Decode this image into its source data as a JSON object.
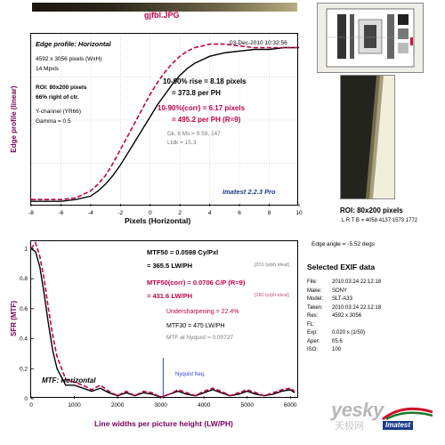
{
  "header": {
    "filename": "gjfbl.JPG"
  },
  "edge_panel": {
    "title": "Edge profile: Horizontal",
    "date": "03-Dec-2010 10:32:56",
    "dims": "4592 x 3056 pixels (WxH)",
    "mpxls": "14 Mpxls",
    "roi": "ROI: 80x200 pixels",
    "position": "66% right of ctr.",
    "channel": "Y-channel  (YR66)",
    "gamma": "Gamma = 0.5",
    "rise": "10-90% rise = 8.18 pixels",
    "rise_ph": "= 373.8 per PH",
    "rise_corr": "10-90%(corr) = 6.17 pixels",
    "rise_corr_ph": "= 495.2 per PH  (R=9)",
    "dk_lt": "Dk, lt Ms = 9.59, 147",
    "ltdk": "Ltdk = 15.3",
    "brand": "Imatest 2.2.3 Pro"
  },
  "mtf_panel": {
    "mtf50": "MTF50 = 0.0598 Cy/Pxl",
    "mtf50_lwph": "= 365.5 LW/PH",
    "mtf50_ideal": "[201 lp/ph ideal]",
    "mtf50_corr": "MTF50(corr) = 0.0706 C/P  (R=9)",
    "mtf50_corr_lwph": "= 431.6 LW/PH",
    "mtf50_corr_ideal": "[280 lp/ph ideal]",
    "undersharpening": "Undersharpening = 22.4%",
    "mtf30": "MTF30 = 475 LW/PH",
    "nyquist_mtf": "MTF at Nyquist = 0.00727",
    "nyquist_label": "Nyquist freq.",
    "title": "MTF: Horizontal"
  },
  "roi": {
    "label": "ROI: 80x200 pixels",
    "coords": "L R T B = 4058 4137  1573 1772",
    "edge_angle": "Edge angle = -5.52 degs"
  },
  "exif": {
    "title": "Selected EXIF data",
    "rows": [
      {
        "k": "File:",
        "v": "2010:03:24 22:12:18"
      },
      {
        "k": "Make:",
        "v": "SONY"
      },
      {
        "k": "Model:",
        "v": "SLT-A33"
      },
      {
        "k": "Taken:",
        "v": "2010:03:24 22:12:18"
      },
      {
        "k": "Res:",
        "v": "4592 x 3056"
      },
      {
        "k": "FL:",
        "v": ""
      },
      {
        "k": "Exp:",
        "v": "0.020 s  (1/50)"
      },
      {
        "k": "Aper:",
        "v": "f/5.6"
      },
      {
        "k": "ISO:",
        "v": "100"
      }
    ]
  },
  "watermark": {
    "site": "yesky",
    "cn": "天极网",
    "logo": "Imatest"
  },
  "colors": {
    "measured": "#000000",
    "corrected": "#c0004a",
    "nyquist": "#2a44cc",
    "grid": "#bdbdbd"
  },
  "chart_data": [
    {
      "type": "line",
      "title": "Edge profile: Horizontal",
      "xlabel": "Pixels (Horizontal)",
      "ylabel": "Edge profile (linear)",
      "xlim": [
        -8,
        10
      ],
      "ylim": [
        0,
        1
      ],
      "xticks": [
        -8,
        -6,
        -4,
        -2,
        0,
        2,
        4,
        6,
        8,
        10
      ],
      "grid": true,
      "series": [
        {
          "style": "solid",
          "color": "#000000",
          "x": [
            -8,
            -7,
            -6,
            -5,
            -4,
            -3.5,
            -3,
            -2.5,
            -2,
            -1.5,
            -1,
            -0.5,
            0,
            0.5,
            1,
            1.5,
            2,
            2.5,
            3,
            3.5,
            4,
            5,
            6,
            7,
            8,
            9,
            10
          ],
          "y": [
            0.03,
            0.03,
            0.03,
            0.04,
            0.06,
            0.09,
            0.13,
            0.18,
            0.24,
            0.31,
            0.38,
            0.45,
            0.52,
            0.59,
            0.65,
            0.71,
            0.76,
            0.8,
            0.83,
            0.85,
            0.87,
            0.89,
            0.9,
            0.91,
            0.91,
            0.92,
            0.92
          ]
        },
        {
          "style": "dashed",
          "color": "#c0004a",
          "x": [
            -8,
            -7,
            -6,
            -5,
            -4,
            -3.5,
            -3,
            -2.5,
            -2,
            -1.5,
            -1,
            -0.5,
            0,
            0.5,
            1,
            1.5,
            2,
            2.5,
            3,
            3.5,
            4,
            5,
            6,
            7,
            8,
            9,
            10
          ],
          "y": [
            0.04,
            0.04,
            0.04,
            0.05,
            0.09,
            0.13,
            0.18,
            0.25,
            0.33,
            0.41,
            0.49,
            0.57,
            0.65,
            0.72,
            0.78,
            0.83,
            0.87,
            0.9,
            0.92,
            0.93,
            0.94,
            0.94,
            0.93,
            0.92,
            0.92,
            0.92,
            0.92
          ]
        }
      ]
    },
    {
      "type": "line",
      "title": "MTF: Horizontal",
      "xlabel": "Line widths per picture height (LW/PH)",
      "ylabel": "SFR (MTF)",
      "xlim": [
        0,
        6200
      ],
      "ylim": [
        0,
        1.05
      ],
      "xticks": [
        0,
        1000,
        2000,
        3000,
        4000,
        5000,
        6000
      ],
      "yticks": [
        0,
        0.2,
        0.4,
        0.6,
        0.8,
        1
      ],
      "nyquist_x": 3056,
      "series": [
        {
          "style": "solid",
          "color": "#000000",
          "x": [
            0,
            100,
            200,
            300,
            400,
            500,
            600,
            800,
            1000,
            1200,
            1400,
            1600,
            1800,
            2000,
            2200,
            2400,
            2600,
            2800,
            3000,
            3200,
            3400,
            3600,
            3800,
            4000,
            4200,
            4400,
            4600,
            4800,
            5000,
            5200,
            5400,
            5600,
            5800,
            6000,
            6100
          ],
          "y": [
            1.0,
            0.98,
            0.88,
            0.7,
            0.5,
            0.32,
            0.2,
            0.09,
            0.09,
            0.07,
            0.05,
            0.07,
            0.04,
            0.02,
            0.04,
            0.02,
            0.04,
            0.03,
            0.01,
            0.03,
            0.05,
            0.03,
            0.02,
            0.04,
            0.06,
            0.04,
            0.02,
            0.03,
            0.05,
            0.03,
            0.02,
            0.03,
            0.05,
            0.06,
            0.04
          ]
        },
        {
          "style": "dashed",
          "color": "#c0004a",
          "x": [
            0,
            100,
            200,
            300,
            400,
            500,
            600,
            800,
            1000,
            1200,
            1400,
            1600,
            1800,
            2000,
            2200,
            2400,
            2600,
            2800,
            3000,
            3200,
            3400,
            3600,
            3800,
            4000,
            4200,
            4400,
            4600,
            4800,
            5000,
            5200,
            5400,
            5600,
            5800,
            6000,
            6100
          ],
          "y": [
            1.0,
            1.04,
            0.95,
            0.8,
            0.6,
            0.42,
            0.28,
            0.13,
            0.11,
            0.09,
            0.06,
            0.09,
            0.05,
            0.02,
            0.05,
            0.02,
            0.05,
            0.04,
            0.01,
            0.03,
            0.06,
            0.04,
            0.02,
            0.05,
            0.07,
            0.05,
            0.02,
            0.04,
            0.06,
            0.04,
            0.02,
            0.04,
            0.06,
            0.07,
            0.05
          ]
        }
      ]
    }
  ]
}
